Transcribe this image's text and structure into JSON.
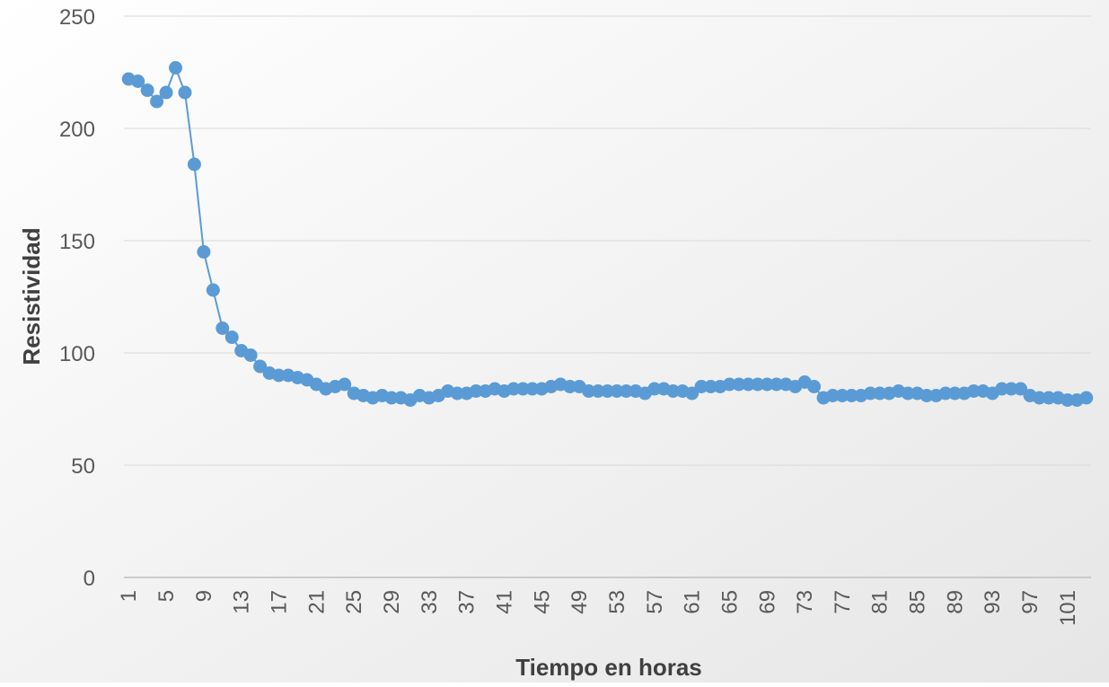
{
  "chart_data": {
    "type": "line",
    "title": "",
    "xlabel": "Tiempo en horas",
    "ylabel": "Resistividad",
    "ylim": [
      0,
      250
    ],
    "y_ticks": [
      0,
      50,
      100,
      150,
      200,
      250
    ],
    "x_tick_labels": [
      "1",
      "5",
      "9",
      "13",
      "17",
      "21",
      "25",
      "29",
      "33",
      "37",
      "41",
      "45",
      "49",
      "53",
      "57",
      "61",
      "65",
      "69",
      "73",
      "77",
      "81",
      "85",
      "89",
      "93",
      "97",
      "101"
    ],
    "grid": "horizontal",
    "legend": "none",
    "colors": {
      "series": "#5B9BD5",
      "gridline": "#D9D9D9",
      "axis": "#BFBFBF",
      "background_start": "#FFFFFF",
      "background_end": "#E6E6E6"
    },
    "x": [
      1,
      2,
      3,
      4,
      5,
      6,
      7,
      8,
      9,
      10,
      11,
      12,
      13,
      14,
      15,
      16,
      17,
      18,
      19,
      20,
      21,
      22,
      23,
      24,
      25,
      26,
      27,
      28,
      29,
      30,
      31,
      32,
      33,
      34,
      35,
      36,
      37,
      38,
      39,
      40,
      41,
      42,
      43,
      44,
      45,
      46,
      47,
      48,
      49,
      50,
      51,
      52,
      53,
      54,
      55,
      56,
      57,
      58,
      59,
      60,
      61,
      62,
      63,
      64,
      65,
      66,
      67,
      68,
      69,
      70,
      71,
      72,
      73,
      74,
      75,
      76,
      77,
      78,
      79,
      80,
      81,
      82,
      83,
      84,
      85,
      86,
      87,
      88,
      89,
      90,
      91,
      92,
      93,
      94,
      95,
      96,
      97,
      98,
      99,
      100,
      101,
      102,
      103
    ],
    "series": [
      {
        "values": [
          222,
          221,
          217,
          212,
          216,
          227,
          216,
          184,
          145,
          128,
          111,
          107,
          101,
          99,
          94,
          91,
          90,
          90,
          89,
          88,
          86,
          84,
          85,
          86,
          82,
          81,
          80,
          81,
          80,
          80,
          79,
          81,
          80,
          81,
          83,
          82,
          82,
          83,
          83,
          84,
          83,
          84,
          84,
          84,
          84,
          85,
          86,
          85,
          85,
          83,
          83,
          83,
          83,
          83,
          83,
          82,
          84,
          84,
          83,
          83,
          82,
          85,
          85,
          85,
          86,
          86,
          86,
          86,
          86,
          86,
          86,
          85,
          87,
          85,
          80,
          81,
          81,
          81,
          81,
          82,
          82,
          82,
          83,
          82,
          82,
          81,
          81,
          82,
          82,
          82,
          83,
          83,
          82,
          84,
          84,
          84,
          81,
          80,
          80,
          80,
          79,
          79,
          80
        ]
      }
    ]
  }
}
